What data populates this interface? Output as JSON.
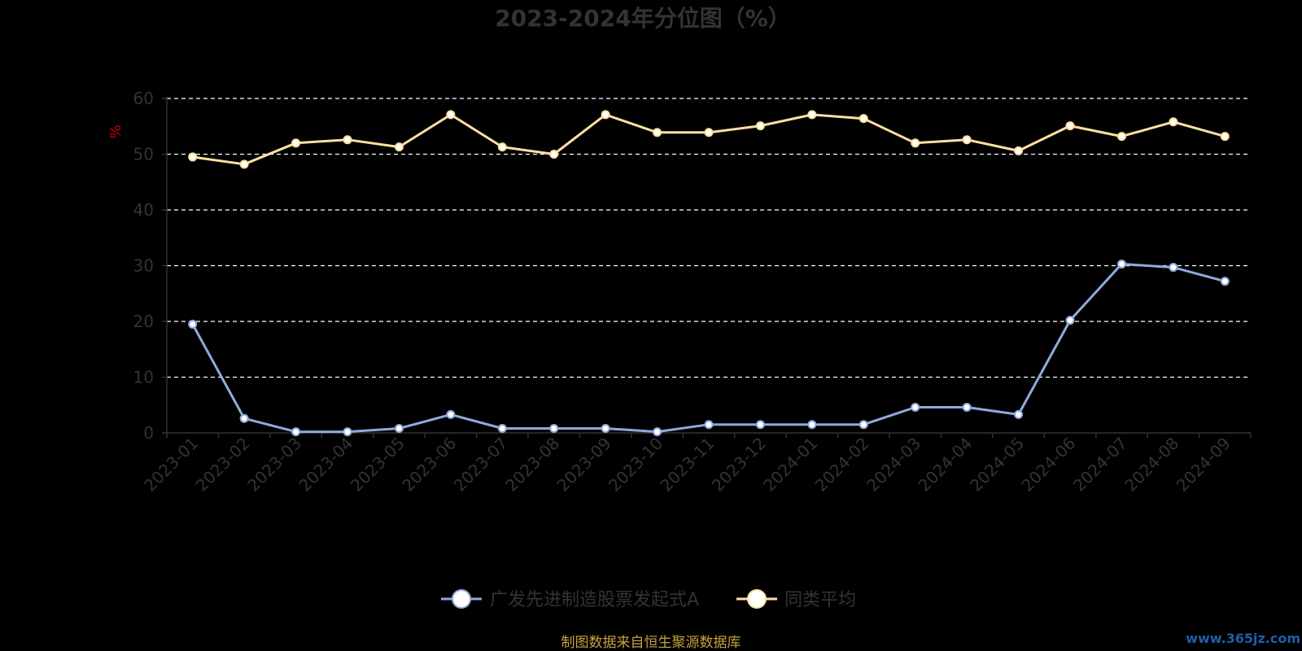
{
  "chart_data": {
    "type": "line",
    "title": "2023-2024年分位图（%）",
    "ylabel": "%",
    "xlabel": "",
    "ylim": [
      0,
      60
    ],
    "yticks": [
      0,
      10,
      20,
      30,
      40,
      50,
      60
    ],
    "grid": true,
    "legend_position": "bottom",
    "categories": [
      "2023-01",
      "2023-02",
      "2023-03",
      "2023-04",
      "2023-05",
      "2023-06",
      "2023-07",
      "2023-08",
      "2023-09",
      "2023-10",
      "2023-11",
      "2023-12",
      "2024-01",
      "2024-02",
      "2024-03",
      "2024-04",
      "2024-05",
      "2024-06",
      "2024-07",
      "2024-08",
      "2024-09"
    ],
    "series": [
      {
        "name": "广发先进制造股票发起式A",
        "color": "#8faadc",
        "values": [
          19.5,
          2.6,
          0.2,
          0.2,
          0.8,
          3.3,
          0.8,
          0.8,
          0.8,
          0.2,
          1.5,
          1.5,
          1.5,
          1.5,
          4.6,
          4.6,
          3.3,
          20.2,
          30.3,
          29.7,
          27.2
        ]
      },
      {
        "name": "同类平均",
        "color": "#ffe0a0",
        "values": [
          49.5,
          48.2,
          52.0,
          52.6,
          51.3,
          57.1,
          51.3,
          50.0,
          57.1,
          53.9,
          53.9,
          55.1,
          57.1,
          56.4,
          52.0,
          52.6,
          50.6,
          55.1,
          53.2,
          55.8,
          53.2
        ]
      }
    ]
  },
  "footer": {
    "source": "制图数据来自恒生聚源数据库"
  },
  "watermark": {
    "text": "www.365jz.com"
  }
}
